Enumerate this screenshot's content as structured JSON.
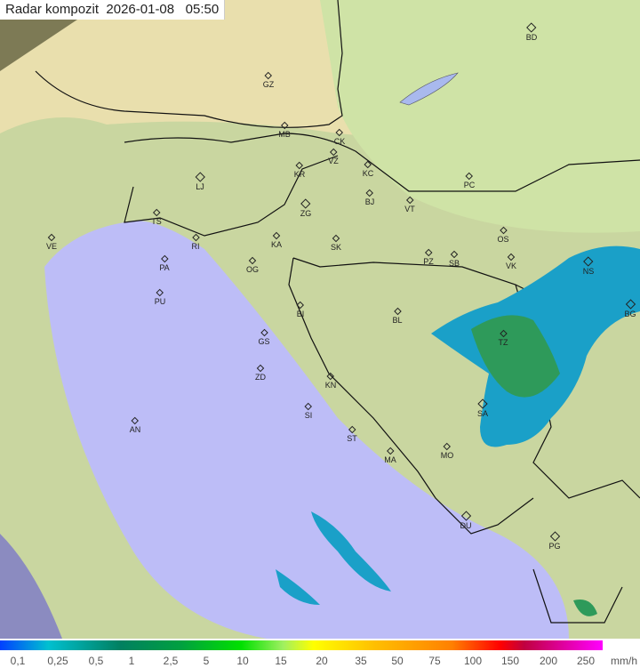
{
  "title": "Radar kompozit",
  "date": "2026-01-08",
  "time": "05:50",
  "cities": [
    "GZ",
    "BD",
    "MB",
    "CK",
    "VZ",
    "KR",
    "KC",
    "LJ",
    "PC",
    "ZG",
    "BJ",
    "VT",
    "TS",
    "VE",
    "OS",
    "KA",
    "SK",
    "RI",
    "PA",
    "OG",
    "PZ",
    "SB",
    "VK",
    "NS",
    "PU",
    "BI",
    "BL",
    "BG",
    "TZ",
    "GS",
    "ZD",
    "KN",
    "SA",
    "SI",
    "AN",
    "ST",
    "MA",
    "MO",
    "DU",
    "PG"
  ],
  "legend": {
    "ticks": [
      "0,1",
      "0,25",
      "0,5",
      "1",
      "2,5",
      "5",
      "10",
      "15",
      "20",
      "35",
      "50",
      "75",
      "100",
      "150",
      "200",
      "250"
    ],
    "unit": "mm/h"
  },
  "colors": {
    "sea": "#bfbff7",
    "land": "#e8e4b0",
    "outside": "#8a8a60",
    "radar_low": "#1a9fc0",
    "radar_mid": "#2e9a5a"
  }
}
